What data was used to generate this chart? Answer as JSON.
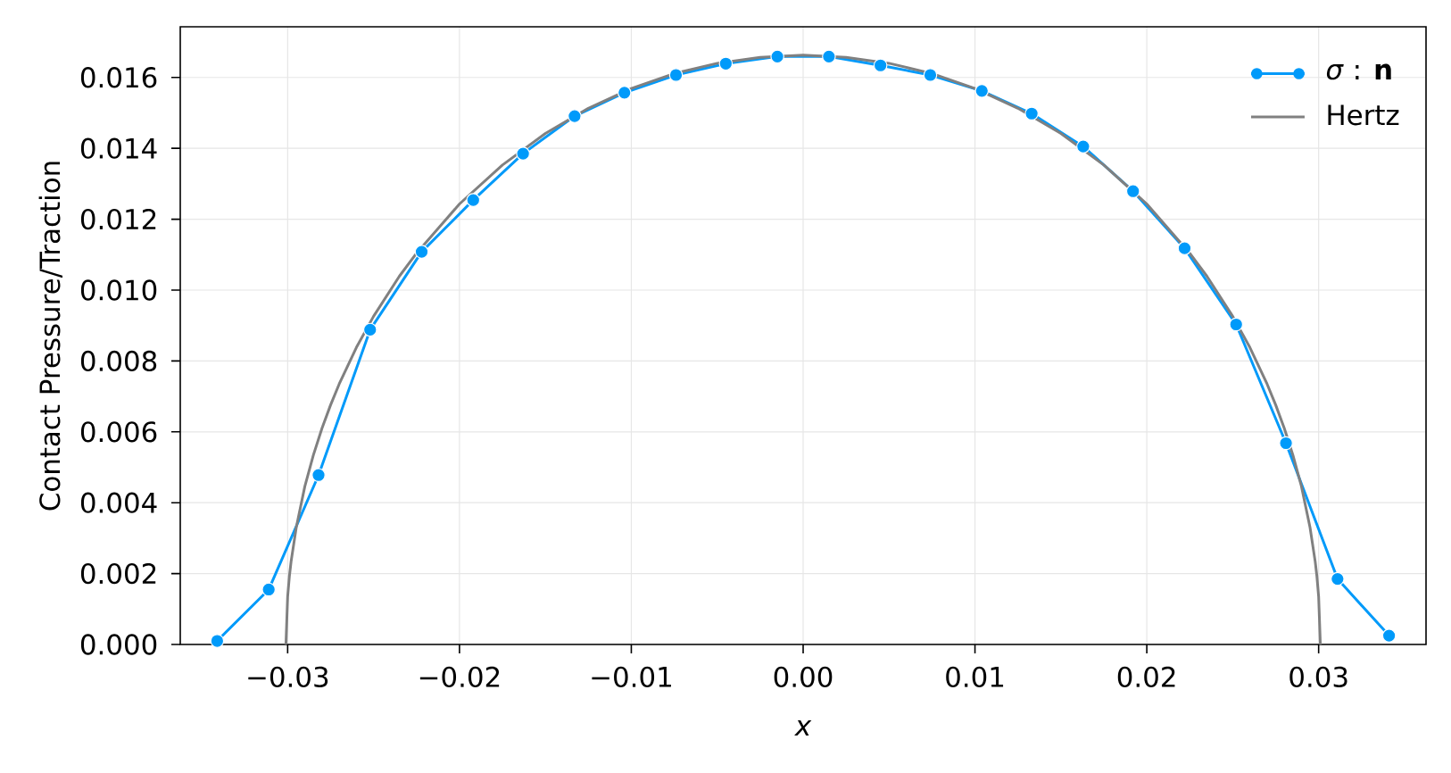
{
  "chart_data": {
    "type": "line",
    "xlabel": "x",
    "ylabel": "Contact Pressure/Traction",
    "xlim": [
      -0.03625,
      0.03625
    ],
    "ylim": [
      0,
      0.01743
    ],
    "xticks": [
      {
        "value": -0.03,
        "label": "−0.03"
      },
      {
        "value": -0.02,
        "label": "−0.02"
      },
      {
        "value": -0.01,
        "label": "−0.01"
      },
      {
        "value": 0,
        "label": "0.00"
      },
      0.01,
      0.02,
      0.03
    ],
    "yticks": [
      {
        "value": 0,
        "label": "0.000"
      },
      {
        "value": 0.002,
        "label": "0.002"
      },
      {
        "value": 0.004,
        "label": "0.004"
      },
      {
        "value": 0.006,
        "label": "0.006"
      },
      {
        "value": 0.008,
        "label": "0.008"
      },
      {
        "value": 0.01,
        "label": "0.010"
      },
      {
        "value": 0.012,
        "label": "0.012"
      },
      {
        "value": 0.014,
        "label": "0.014"
      },
      {
        "value": 0.016,
        "label": "0.016"
      }
    ],
    "grid": true,
    "legend": "top right",
    "series": [
      {
        "name": "*σ* : **n**",
        "color": "#009afa",
        "marker": "circle",
        "x": [
          -0.0341,
          -0.0311,
          -0.0282,
          -0.0252,
          -0.0222,
          -0.0192,
          -0.0163,
          -0.0133,
          -0.0104,
          -0.0074,
          -0.0045,
          -0.0015,
          0.0015,
          0.0045,
          0.0074,
          0.0104,
          0.0133,
          0.0163,
          0.0192,
          0.0222,
          0.0252,
          0.0281,
          0.0311,
          0.0341
        ],
        "values": [
          0.0001,
          0.00155,
          0.00478,
          0.00888,
          0.01108,
          0.01254,
          0.01385,
          0.01491,
          0.01557,
          0.01607,
          0.01639,
          0.01659,
          0.01659,
          0.01634,
          0.01607,
          0.01562,
          0.01498,
          0.01405,
          0.01279,
          0.01118,
          0.00903,
          0.00568,
          0.00185,
          0.00025
        ]
      },
      {
        "name": "Hertz",
        "color": "#808080",
        "marker": "none",
        "x": [
          -0.0301,
          -0.03,
          -0.0299,
          -0.0298,
          -0.0295,
          -0.029,
          -0.0285,
          -0.028,
          -0.0275,
          -0.027,
          -0.026,
          -0.025,
          -0.0235,
          -0.0225,
          -0.02,
          -0.0175,
          -0.015,
          -0.0125,
          -0.01,
          -0.0075,
          -0.005,
          -0.0025,
          0,
          0.0025,
          0.005,
          0.0075,
          0.01,
          0.0125,
          0.015,
          0.0175,
          0.02,
          0.0225,
          0.0235,
          0.025,
          0.026,
          0.027,
          0.0275,
          0.028,
          0.0285,
          0.029,
          0.0295,
          0.0298,
          0.0299,
          0.03,
          0.0301
        ],
        "values": [
          0,
          0.00135,
          0.00192,
          0.00234,
          0.0033,
          0.00446,
          0.00535,
          0.0061,
          0.00676,
          0.00735,
          0.00838,
          0.00926,
          0.01039,
          0.01104,
          0.01243,
          0.01353,
          0.01442,
          0.01513,
          0.01569,
          0.01611,
          0.0164,
          0.01657,
          0.01663,
          0.01657,
          0.0164,
          0.01611,
          0.01569,
          0.01513,
          0.01442,
          0.01353,
          0.01243,
          0.01104,
          0.01039,
          0.00926,
          0.00838,
          0.00735,
          0.00676,
          0.0061,
          0.00535,
          0.00446,
          0.0033,
          0.00234,
          0.00192,
          0.00135,
          0
        ]
      }
    ]
  }
}
